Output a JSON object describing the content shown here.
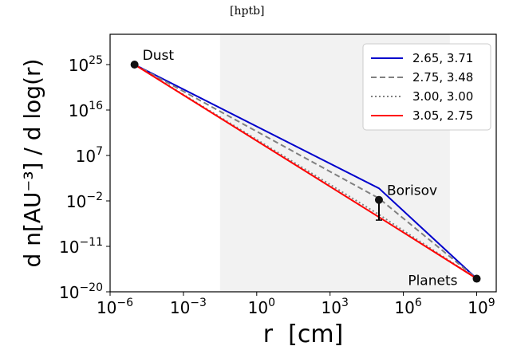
{
  "header_note": "[hptb]",
  "chart_data": {
    "type": "line",
    "title": "",
    "xlabel": "r  [cm]",
    "ylabel": "d n[AU⁻³] / d log(r)",
    "xscale": "log",
    "yscale": "log",
    "xlim_log10": [
      -6,
      9.8
    ],
    "ylim_log10": [
      -20,
      31
    ],
    "x_ticks": [
      {
        "base": "10",
        "exp": "−6",
        "log": -6
      },
      {
        "base": "10",
        "exp": "−3",
        "log": -3
      },
      {
        "base": "10",
        "exp": "0",
        "log": 0
      },
      {
        "base": "10",
        "exp": "3",
        "log": 3
      },
      {
        "base": "10",
        "exp": "6",
        "log": 6
      },
      {
        "base": "10",
        "exp": "9",
        "log": 9
      }
    ],
    "y_ticks": [
      {
        "base": "10",
        "exp": "−20",
        "log": -20
      },
      {
        "base": "10",
        "exp": "−11",
        "log": -11
      },
      {
        "base": "10",
        "exp": "−2",
        "log": -2
      },
      {
        "base": "10",
        "exp": "7",
        "log": 7
      },
      {
        "base": "10",
        "exp": "16",
        "log": 16
      },
      {
        "base": "10",
        "exp": "25",
        "log": 25
      }
    ],
    "shaded_region_log10": [
      -1.5,
      7.9
    ],
    "shade_color": "#f2f2f2",
    "legend_position": "top-right",
    "grid": false,
    "series": [
      {
        "name": "2.65, 3.71",
        "color": "#0000cc",
        "dash": "solid",
        "x_log10": [
          -5,
          5,
          9
        ],
        "y_log10": [
          25,
          0.5,
          -17.4
        ]
      },
      {
        "name": "2.75, 3.48",
        "color": "#808080",
        "dash": "dashed",
        "x_log10": [
          -5,
          5,
          9
        ],
        "y_log10": [
          25,
          -1.5,
          -17.4
        ]
      },
      {
        "name": "3.00, 3.00",
        "color": "#808080",
        "dash": "dotted",
        "x_log10": [
          -5,
          5,
          9
        ],
        "y_log10": [
          25,
          -4.7,
          -17.4
        ]
      },
      {
        "name": "3.05, 2.75",
        "color": "#ff0000",
        "dash": "solid",
        "x_log10": [
          -5,
          5,
          9
        ],
        "y_log10": [
          25,
          -5.2,
          -17.4
        ]
      }
    ],
    "points": [
      {
        "label": "Dust",
        "x_log10": -5,
        "y_log10": 25,
        "label_side": "right-up"
      },
      {
        "label": "Borisov",
        "x_log10": 5,
        "y_log10": -1.8,
        "label_side": "right-up"
      },
      {
        "label": "Planets",
        "x_log10": 9,
        "y_log10": -17.4,
        "label_side": "left-down"
      }
    ],
    "error_bar": {
      "x_log10": 5,
      "y_low_log10": -5.8,
      "y_high_log10": -1.8,
      "color": "#000000"
    }
  }
}
